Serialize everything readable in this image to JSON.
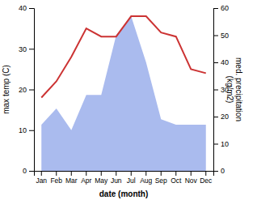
{
  "chart_data": {
    "type": "line",
    "categories": [
      "Jan",
      "Feb",
      "Mar",
      "Apr",
      "May",
      "Jun",
      "Jul",
      "Aug",
      "Sep",
      "Oct",
      "Nov",
      "Dec"
    ],
    "xlabel": "date (month)",
    "ylabel": "max temp (C)",
    "y2label": "med. precipitation\n(kg/m2)",
    "ylim": [
      0,
      40
    ],
    "yticks": [
      0,
      10,
      20,
      30,
      40
    ],
    "y2lim": [
      0,
      60
    ],
    "y2ticks": [
      0,
      10,
      20,
      30,
      40,
      50,
      60
    ],
    "series": [
      {
        "type": "area",
        "axis": "y2",
        "color": "#aabbee",
        "values": [
          17,
          23,
          15,
          28,
          28,
          50,
          57,
          40,
          19,
          17,
          17,
          17
        ]
      },
      {
        "type": "line",
        "color": "#cc3333",
        "values": [
          18,
          22,
          28,
          35,
          33,
          33,
          38,
          38,
          34,
          33,
          25,
          24
        ]
      }
    ]
  }
}
